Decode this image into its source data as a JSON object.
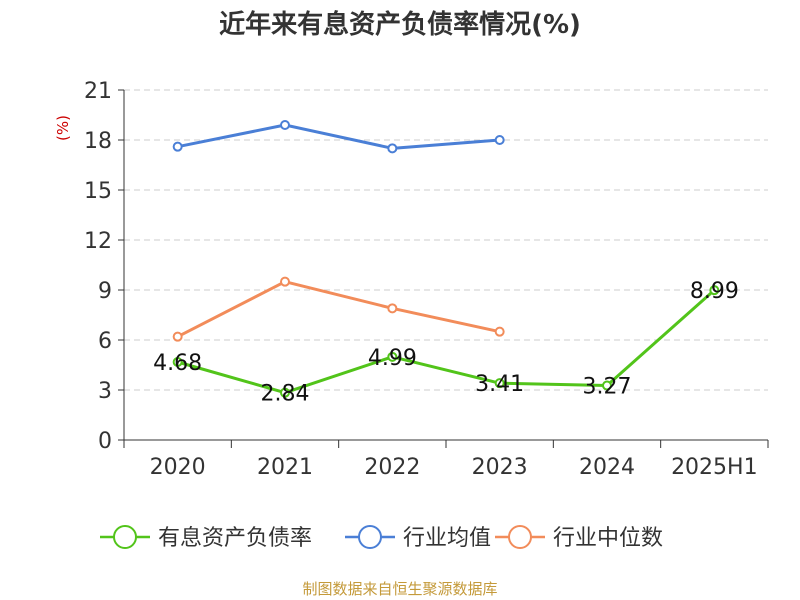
{
  "chart_data": {
    "type": "line",
    "title": "近年来有息资产负债率情况(%)",
    "ylabel": "(%)",
    "categories": [
      "2020",
      "2021",
      "2022",
      "2023",
      "2024",
      "2025H1"
    ],
    "ylim": [
      0,
      21
    ],
    "yticks": [
      "0",
      "3",
      "6",
      "9",
      "12",
      "15",
      "18",
      "21"
    ],
    "grid": true,
    "legend_position": "bottom",
    "series": [
      {
        "name": "有息资产负债率",
        "color": "#52c41a",
        "values": [
          4.68,
          2.84,
          4.99,
          3.41,
          3.27,
          8.99
        ],
        "labels": [
          "4.68",
          "2.84",
          "4.99",
          "3.41",
          "3.27",
          "8.99"
        ]
      },
      {
        "name": "行业均值",
        "color": "#4a7fd6",
        "values": [
          17.6,
          18.9,
          17.5,
          18.0,
          null,
          null
        ]
      },
      {
        "name": "行业中位数",
        "color": "#f28c5a",
        "values": [
          6.2,
          9.5,
          7.9,
          6.5,
          null,
          null
        ]
      }
    ]
  },
  "footer": {
    "source": "制图数据来自恒生聚源数据库"
  },
  "colors": {
    "axis": "#333333",
    "grid": "#cccccc",
    "ylabel": "#cc0000",
    "source": "#c49a3a"
  }
}
